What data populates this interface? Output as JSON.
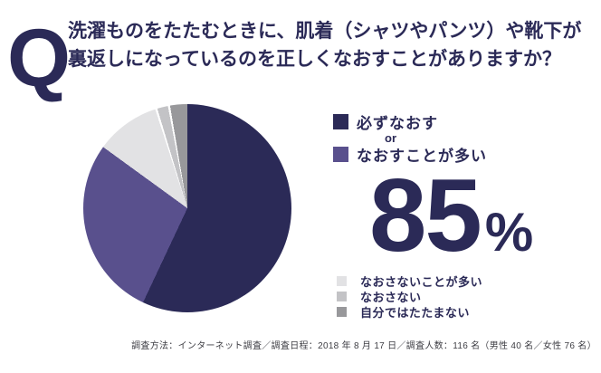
{
  "header": {
    "q_mark": "Q",
    "question_line1": "洗濯ものをたたむときに、肌着（シャツやパンツ）や靴下が",
    "question_line2": "裏返しになっているのを正しくなおすことがありますか？"
  },
  "colors": {
    "navy": "#2b2a57",
    "purple": "#59508d",
    "gray_light": "#e2e2e4",
    "gray_mid": "#c3c3c6",
    "gray_dark": "#98989b",
    "footer_text": "#3e3e44",
    "background": "#ffffff"
  },
  "chart_data": {
    "type": "pie",
    "title": "洗濯ものをたたむときに、肌着（シャツやパンツ）や靴下が裏返しになっているのを正しくなおすことがありますか？",
    "start_angle_deg": 0,
    "direction": "clockwise",
    "segments": [
      {
        "label": "必ずなおす",
        "value": 57,
        "color": "#2b2a57"
      },
      {
        "label": "なおすことが多い",
        "value": 28,
        "color": "#59508d"
      },
      {
        "label": "なおさないことが多い",
        "value": 10,
        "color": "#e2e2e4"
      },
      {
        "label": "なおさない",
        "value": 2,
        "color": "#c3c3c6",
        "separator_before": true
      },
      {
        "label": "自分ではたたまない",
        "value": 3,
        "color": "#98989b",
        "separator_before": true
      }
    ],
    "combined_highlight": {
      "labels": [
        "必ずなおす",
        "なおすことが多い"
      ],
      "value_percent": 85
    },
    "legend_position": "right"
  },
  "highlight": {
    "or_label": "or",
    "value": "85",
    "sign": "%"
  },
  "footer": {
    "text": "調査方法：インターネット調査／調査日程：2018 年 8 月 17 日／調査人数：116 名（男性 40 名／女性 76 名）"
  }
}
